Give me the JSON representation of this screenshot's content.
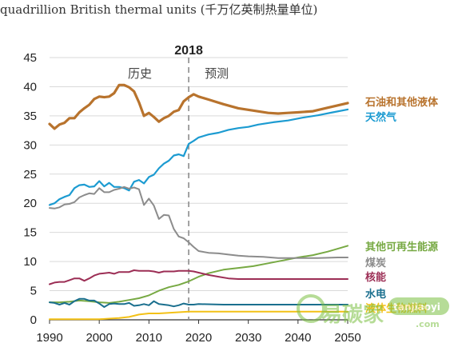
{
  "chart_data": {
    "type": "line",
    "title": "quadrillion British thermal units (千万亿英制热量单位)",
    "ylim": [
      0,
      45
    ],
    "xlim": [
      1990,
      2050
    ],
    "yticks": [
      0,
      5,
      10,
      15,
      20,
      25,
      30,
      35,
      40,
      45
    ],
    "xticks": [
      1990,
      2000,
      2010,
      2020,
      2030,
      2040,
      2050
    ],
    "grid": "horizontal",
    "legend": "right, end of lines",
    "marker": {
      "year": 2018,
      "label": "2018",
      "left_label": "历史",
      "right_label": "预测"
    },
    "series": [
      {
        "name": "石油和其他液体",
        "color": "#b8732d",
        "points": [
          [
            1990,
            33.6
          ],
          [
            1991,
            32.8
          ],
          [
            1992,
            33.5
          ],
          [
            1993,
            33.8
          ],
          [
            1994,
            34.6
          ],
          [
            1995,
            34.6
          ],
          [
            1996,
            35.6
          ],
          [
            1997,
            36.3
          ],
          [
            1998,
            36.9
          ],
          [
            1999,
            37.9
          ],
          [
            2000,
            38.3
          ],
          [
            2001,
            38.2
          ],
          [
            2002,
            38.3
          ],
          [
            2003,
            38.9
          ],
          [
            2004,
            40.3
          ],
          [
            2005,
            40.3
          ],
          [
            2006,
            39.9
          ],
          [
            2007,
            39.2
          ],
          [
            2008,
            37.3
          ],
          [
            2009,
            35.0
          ],
          [
            2010,
            35.5
          ],
          [
            2011,
            34.8
          ],
          [
            2012,
            34.0
          ],
          [
            2013,
            34.6
          ],
          [
            2014,
            35.0
          ],
          [
            2015,
            35.7
          ],
          [
            2016,
            36.0
          ],
          [
            2017,
            37.5
          ],
          [
            2018,
            38.2
          ],
          [
            2019,
            38.7
          ],
          [
            2020,
            38.3
          ],
          [
            2022,
            37.8
          ],
          [
            2025,
            37.0
          ],
          [
            2028,
            36.3
          ],
          [
            2031,
            35.9
          ],
          [
            2034,
            35.5
          ],
          [
            2036,
            35.4
          ],
          [
            2038,
            35.5
          ],
          [
            2040,
            35.6
          ],
          [
            2043,
            35.8
          ],
          [
            2046,
            36.4
          ],
          [
            2048,
            36.8
          ],
          [
            2050,
            37.2
          ]
        ]
      },
      {
        "name": "天然气",
        "color": "#1c9bd1",
        "points": [
          [
            1990,
            19.7
          ],
          [
            1991,
            20.0
          ],
          [
            1992,
            20.7
          ],
          [
            1993,
            21.1
          ],
          [
            1994,
            21.4
          ],
          [
            1995,
            22.6
          ],
          [
            1996,
            23.1
          ],
          [
            1997,
            23.2
          ],
          [
            1998,
            22.8
          ],
          [
            1999,
            22.9
          ],
          [
            2000,
            23.8
          ],
          [
            2001,
            22.9
          ],
          [
            2002,
            23.5
          ],
          [
            2003,
            22.8
          ],
          [
            2004,
            22.8
          ],
          [
            2005,
            22.6
          ],
          [
            2006,
            22.2
          ],
          [
            2007,
            23.7
          ],
          [
            2008,
            24.0
          ],
          [
            2009,
            23.4
          ],
          [
            2010,
            24.5
          ],
          [
            2011,
            24.9
          ],
          [
            2012,
            26.0
          ],
          [
            2013,
            26.8
          ],
          [
            2014,
            27.3
          ],
          [
            2015,
            28.2
          ],
          [
            2016,
            28.4
          ],
          [
            2017,
            28.1
          ],
          [
            2018,
            30.2
          ],
          [
            2019,
            30.7
          ],
          [
            2020,
            31.3
          ],
          [
            2022,
            31.8
          ],
          [
            2024,
            32.1
          ],
          [
            2026,
            32.6
          ],
          [
            2028,
            32.9
          ],
          [
            2030,
            33.1
          ],
          [
            2032,
            33.5
          ],
          [
            2035,
            33.9
          ],
          [
            2038,
            34.2
          ],
          [
            2041,
            34.7
          ],
          [
            2044,
            35.1
          ],
          [
            2047,
            35.6
          ],
          [
            2050,
            36.1
          ]
        ]
      },
      {
        "name": "其他可再生能源",
        "color": "#77a943",
        "points": [
          [
            1990,
            3.0
          ],
          [
            1992,
            3.0
          ],
          [
            1994,
            3.1
          ],
          [
            1996,
            3.3
          ],
          [
            1998,
            3.2
          ],
          [
            2000,
            3.0
          ],
          [
            2002,
            2.9
          ],
          [
            2004,
            3.1
          ],
          [
            2006,
            3.4
          ],
          [
            2008,
            3.7
          ],
          [
            2010,
            4.2
          ],
          [
            2012,
            5.0
          ],
          [
            2014,
            5.6
          ],
          [
            2016,
            6.0
          ],
          [
            2018,
            6.6
          ],
          [
            2020,
            7.4
          ],
          [
            2022,
            8.0
          ],
          [
            2025,
            8.6
          ],
          [
            2028,
            8.9
          ],
          [
            2031,
            9.2
          ],
          [
            2034,
            9.7
          ],
          [
            2037,
            10.2
          ],
          [
            2040,
            10.7
          ],
          [
            2043,
            11.1
          ],
          [
            2046,
            11.7
          ],
          [
            2048,
            12.2
          ],
          [
            2050,
            12.7
          ]
        ]
      },
      {
        "name": "煤炭",
        "color": "#8c8c8c",
        "points": [
          [
            1990,
            19.2
          ],
          [
            1991,
            19.1
          ],
          [
            1992,
            19.3
          ],
          [
            1993,
            19.8
          ],
          [
            1994,
            19.9
          ],
          [
            1995,
            20.2
          ],
          [
            1996,
            21.0
          ],
          [
            1997,
            21.4
          ],
          [
            1998,
            21.7
          ],
          [
            1999,
            21.6
          ],
          [
            2000,
            22.6
          ],
          [
            2001,
            21.9
          ],
          [
            2002,
            21.9
          ],
          [
            2003,
            22.3
          ],
          [
            2004,
            22.5
          ],
          [
            2005,
            22.8
          ],
          [
            2006,
            22.5
          ],
          [
            2007,
            22.7
          ],
          [
            2008,
            22.4
          ],
          [
            2009,
            19.7
          ],
          [
            2010,
            20.8
          ],
          [
            2011,
            19.6
          ],
          [
            2012,
            17.3
          ],
          [
            2013,
            18.0
          ],
          [
            2014,
            17.9
          ],
          [
            2015,
            15.6
          ],
          [
            2016,
            14.3
          ],
          [
            2017,
            14.0
          ],
          [
            2018,
            13.3
          ],
          [
            2019,
            12.5
          ],
          [
            2020,
            11.8
          ],
          [
            2022,
            11.5
          ],
          [
            2024,
            11.4
          ],
          [
            2026,
            11.2
          ],
          [
            2028,
            11.0
          ],
          [
            2030,
            10.9
          ],
          [
            2033,
            10.8
          ],
          [
            2036,
            10.6
          ],
          [
            2040,
            10.6
          ],
          [
            2044,
            10.6
          ],
          [
            2048,
            10.7
          ],
          [
            2050,
            10.7
          ]
        ]
      },
      {
        "name": "核能",
        "color": "#9c2e55",
        "points": [
          [
            1990,
            6.1
          ],
          [
            1991,
            6.4
          ],
          [
            1992,
            6.5
          ],
          [
            1993,
            6.5
          ],
          [
            1994,
            6.8
          ],
          [
            1995,
            7.1
          ],
          [
            1996,
            7.1
          ],
          [
            1997,
            6.7
          ],
          [
            1998,
            7.1
          ],
          [
            1999,
            7.6
          ],
          [
            2000,
            7.9
          ],
          [
            2001,
            8.0
          ],
          [
            2002,
            8.1
          ],
          [
            2003,
            7.9
          ],
          [
            2004,
            8.2
          ],
          [
            2005,
            8.2
          ],
          [
            2006,
            8.2
          ],
          [
            2007,
            8.5
          ],
          [
            2008,
            8.4
          ],
          [
            2009,
            8.4
          ],
          [
            2010,
            8.4
          ],
          [
            2011,
            8.3
          ],
          [
            2012,
            8.1
          ],
          [
            2013,
            8.3
          ],
          [
            2014,
            8.3
          ],
          [
            2015,
            8.3
          ],
          [
            2016,
            8.4
          ],
          [
            2017,
            8.4
          ],
          [
            2018,
            8.4
          ],
          [
            2019,
            8.3
          ],
          [
            2020,
            8.1
          ],
          [
            2022,
            7.7
          ],
          [
            2024,
            7.4
          ],
          [
            2026,
            7.1
          ],
          [
            2028,
            7.0
          ],
          [
            2030,
            7.0
          ],
          [
            2034,
            7.0
          ],
          [
            2038,
            7.0
          ],
          [
            2042,
            7.0
          ],
          [
            2046,
            7.0
          ],
          [
            2050,
            7.0
          ]
        ]
      },
      {
        "name": "水电",
        "color": "#1a6f8e",
        "points": [
          [
            1990,
            3.0
          ],
          [
            1991,
            2.9
          ],
          [
            1992,
            2.6
          ],
          [
            1993,
            2.9
          ],
          [
            1994,
            2.6
          ],
          [
            1995,
            3.2
          ],
          [
            1996,
            3.6
          ],
          [
            1997,
            3.6
          ],
          [
            1998,
            3.3
          ],
          [
            1999,
            3.3
          ],
          [
            2000,
            2.8
          ],
          [
            2001,
            2.2
          ],
          [
            2002,
            2.7
          ],
          [
            2003,
            2.8
          ],
          [
            2004,
            2.7
          ],
          [
            2005,
            2.7
          ],
          [
            2006,
            2.9
          ],
          [
            2007,
            2.4
          ],
          [
            2008,
            2.5
          ],
          [
            2009,
            2.7
          ],
          [
            2010,
            2.5
          ],
          [
            2011,
            3.2
          ],
          [
            2012,
            2.7
          ],
          [
            2013,
            2.6
          ],
          [
            2014,
            2.5
          ],
          [
            2015,
            2.3
          ],
          [
            2016,
            2.5
          ],
          [
            2017,
            2.8
          ],
          [
            2018,
            2.6
          ],
          [
            2019,
            2.6
          ],
          [
            2020,
            2.7
          ],
          [
            2025,
            2.6
          ],
          [
            2030,
            2.6
          ],
          [
            2035,
            2.6
          ],
          [
            2040,
            2.6
          ],
          [
            2045,
            2.6
          ],
          [
            2050,
            2.6
          ]
        ]
      },
      {
        "name": "液体生物燃料",
        "color": "#f3c117",
        "points": [
          [
            1990,
            0.1
          ],
          [
            1995,
            0.1
          ],
          [
            2000,
            0.1
          ],
          [
            2002,
            0.2
          ],
          [
            2004,
            0.3
          ],
          [
            2006,
            0.5
          ],
          [
            2008,
            0.9
          ],
          [
            2010,
            1.1
          ],
          [
            2012,
            1.1
          ],
          [
            2014,
            1.2
          ],
          [
            2016,
            1.3
          ],
          [
            2018,
            1.4
          ],
          [
            2020,
            1.4
          ],
          [
            2025,
            1.4
          ],
          [
            2030,
            1.4
          ],
          [
            2035,
            1.4
          ],
          [
            2040,
            1.4
          ],
          [
            2045,
            1.4
          ],
          [
            2050,
            1.4
          ]
        ]
      }
    ]
  },
  "watermark": {
    "brand": "易碳家",
    "site": "tanjiaoyi",
    "domain": ".com"
  }
}
